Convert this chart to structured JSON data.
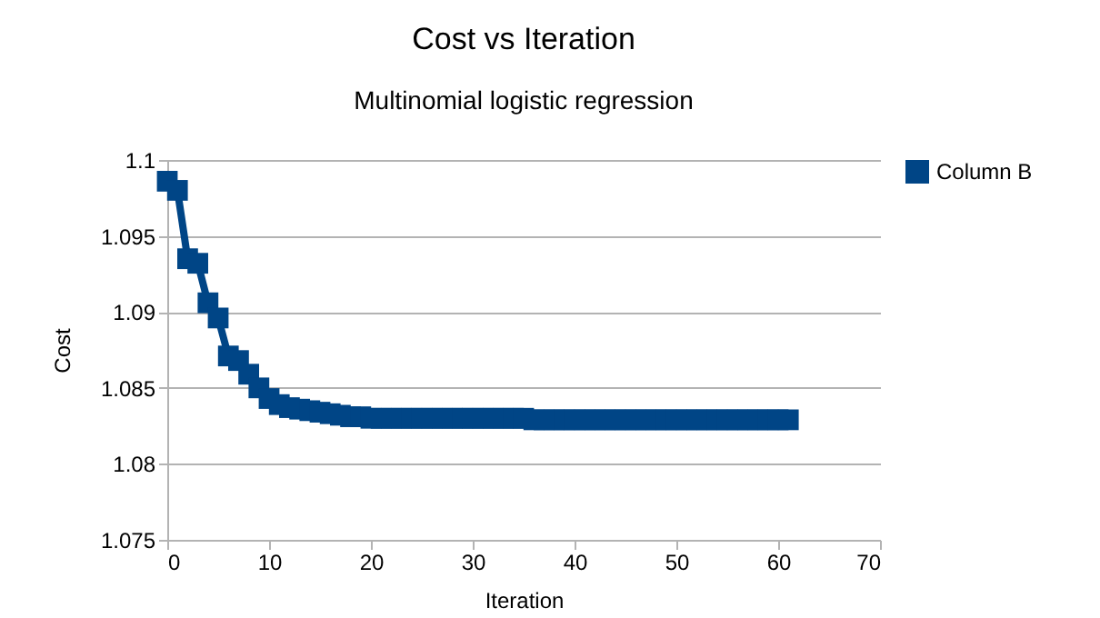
{
  "chart_data": {
    "type": "line",
    "title": "Cost vs Iteration",
    "subtitle": "Multinomial logistic regression",
    "xlabel": "Iteration",
    "ylabel": "Cost",
    "x": [
      0,
      1,
      2,
      3,
      4,
      5,
      6,
      7,
      8,
      9,
      10,
      11,
      12,
      13,
      14,
      15,
      16,
      17,
      18,
      19,
      20,
      21,
      22,
      23,
      24,
      25,
      26,
      27,
      28,
      29,
      30,
      31,
      32,
      33,
      34,
      35,
      36,
      37,
      38,
      39,
      40,
      41,
      42,
      43,
      44,
      45,
      46,
      47,
      48,
      49,
      50,
      51,
      52,
      53,
      54,
      55,
      56,
      57,
      58,
      59,
      60,
      61
    ],
    "series": [
      {
        "name": "Column B",
        "color": "#004586",
        "values": [
          1.0986,
          1.098,
          1.0935,
          1.0932,
          1.0906,
          1.0896,
          1.0871,
          1.0868,
          1.0859,
          1.085,
          1.0843,
          1.0839,
          1.0837,
          1.0836,
          1.0835,
          1.0834,
          1.0833,
          1.0832,
          1.0831,
          1.0831,
          1.083,
          1.083,
          1.083,
          1.083,
          1.083,
          1.083,
          1.083,
          1.083,
          1.083,
          1.083,
          1.083,
          1.083,
          1.083,
          1.083,
          1.083,
          1.083,
          1.0829,
          1.0829,
          1.0829,
          1.0829,
          1.0829,
          1.0829,
          1.0829,
          1.0829,
          1.0829,
          1.0829,
          1.0829,
          1.0829,
          1.0829,
          1.0829,
          1.0829,
          1.0829,
          1.0829,
          1.0829,
          1.0829,
          1.0829,
          1.0829,
          1.0829,
          1.0829,
          1.0829,
          1.0829,
          1.0829
        ]
      }
    ],
    "xlim": [
      0,
      70
    ],
    "xticks": [
      0,
      10,
      20,
      30,
      40,
      50,
      60,
      70
    ],
    "ylim": [
      1.075,
      1.1
    ],
    "yticks": [
      1.075,
      1.08,
      1.085,
      1.09,
      1.095,
      1.1
    ],
    "grid": "y",
    "legend": "right",
    "marker": "square",
    "line_style": "solid"
  }
}
